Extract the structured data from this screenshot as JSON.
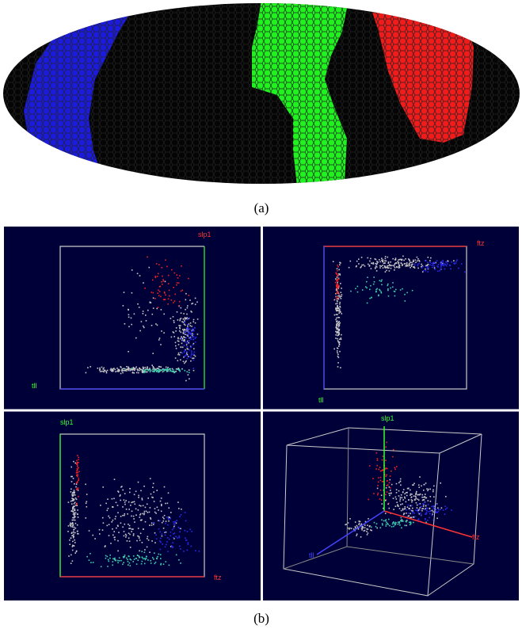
{
  "figure": {
    "panel_a": {
      "label": "(a)"
    },
    "panel_b": {
      "label": "(b)",
      "plots": [
        {
          "vertical_axis": "slp1",
          "horizontal_axis": "tll"
        },
        {
          "vertical_axis": "ftz",
          "horizontal_axis": "tll"
        },
        {
          "vertical_axis": "slp1",
          "horizontal_axis": "ftz"
        },
        {
          "vertical_axis": "slp1",
          "horizontal_axis": "ftz",
          "depth_axis": "tll"
        }
      ]
    }
  }
}
